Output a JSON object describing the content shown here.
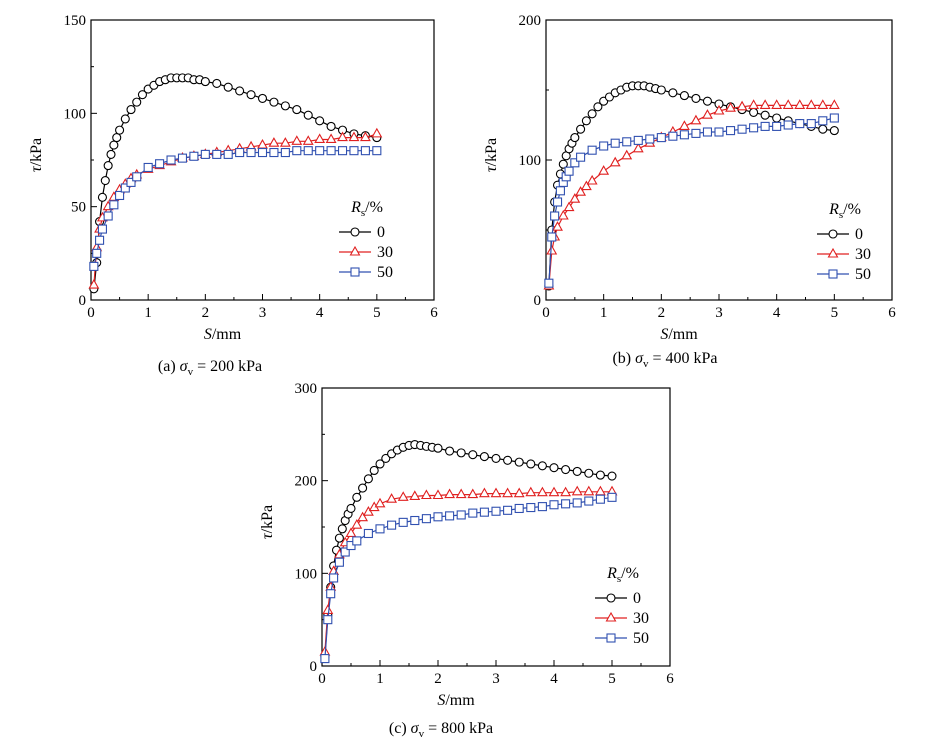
{
  "chart_data": [
    {
      "type": "scatter",
      "caption": {
        "prefix": "(a) ",
        "symbol": "σ",
        "sub": "v",
        "suffix": " = 200 kPa"
      },
      "xlabel": {
        "italic": "S",
        "unit": "/mm"
      },
      "ylabel": {
        "italic": "τ",
        "unit": "/kPa"
      },
      "xlim": [
        0,
        6
      ],
      "ylim": [
        0,
        150
      ],
      "xticks": [
        0,
        1,
        2,
        3,
        4,
        5,
        6
      ],
      "yticks": [
        0,
        50,
        100,
        150
      ],
      "legend": {
        "title_italic": "R",
        "title_sub": "s",
        "title_unit": "/%",
        "placement": "right"
      },
      "series": [
        {
          "name": "0",
          "marker": "circle",
          "color": "#000000",
          "x": [
            0.05,
            0.1,
            0.15,
            0.2,
            0.25,
            0.3,
            0.35,
            0.4,
            0.45,
            0.5,
            0.6,
            0.7,
            0.8,
            0.9,
            1.0,
            1.1,
            1.2,
            1.3,
            1.4,
            1.5,
            1.6,
            1.7,
            1.8,
            1.9,
            2.0,
            2.2,
            2.4,
            2.6,
            2.8,
            3.0,
            3.2,
            3.4,
            3.6,
            3.8,
            4.0,
            4.2,
            4.4,
            4.6,
            4.8,
            5.0
          ],
          "y": [
            6,
            20,
            42,
            55,
            64,
            72,
            78,
            83,
            87,
            91,
            97,
            102,
            106,
            110,
            113,
            115,
            117,
            118,
            119,
            119,
            119,
            119,
            118,
            118,
            117,
            116,
            114,
            112,
            110,
            108,
            106,
            104,
            102,
            99,
            96,
            93,
            91,
            89,
            88,
            87
          ]
        },
        {
          "name": "30",
          "marker": "triangle",
          "color": "#e02020",
          "x": [
            0.05,
            0.1,
            0.15,
            0.2,
            0.3,
            0.4,
            0.5,
            0.6,
            0.7,
            0.8,
            1.0,
            1.2,
            1.4,
            1.6,
            1.8,
            2.0,
            2.2,
            2.4,
            2.6,
            2.8,
            3.0,
            3.2,
            3.4,
            3.6,
            3.8,
            4.0,
            4.2,
            4.4,
            4.6,
            4.8,
            5.0
          ],
          "y": [
            8,
            28,
            38,
            44,
            50,
            55,
            59,
            62,
            65,
            67,
            70,
            72,
            74,
            76,
            77,
            78,
            79,
            80,
            81,
            82,
            83,
            84,
            84,
            85,
            85,
            86,
            86,
            87,
            87,
            87,
            89
          ]
        },
        {
          "name": "50",
          "marker": "square",
          "color": "#3050b0",
          "x": [
            0.05,
            0.1,
            0.15,
            0.2,
            0.3,
            0.4,
            0.5,
            0.6,
            0.7,
            0.8,
            1.0,
            1.2,
            1.4,
            1.6,
            1.8,
            2.0,
            2.2,
            2.4,
            2.6,
            2.8,
            3.0,
            3.2,
            3.4,
            3.6,
            3.8,
            4.0,
            4.2,
            4.4,
            4.6,
            4.8,
            5.0
          ],
          "y": [
            18,
            25,
            32,
            38,
            45,
            51,
            56,
            60,
            63,
            66,
            71,
            73,
            75,
            76,
            77,
            78,
            78,
            78,
            79,
            79,
            79,
            79,
            79,
            80,
            80,
            80,
            80,
            80,
            80,
            80,
            80
          ]
        }
      ]
    },
    {
      "type": "scatter",
      "caption": {
        "prefix": "(b) ",
        "symbol": "σ",
        "sub": "v",
        "suffix": " = 400 kPa"
      },
      "xlabel": {
        "italic": "S",
        "unit": "/mm"
      },
      "ylabel": {
        "italic": "τ",
        "unit": "/kPa"
      },
      "xlim": [
        0,
        6
      ],
      "ylim": [
        0,
        200
      ],
      "xticks": [
        0,
        1,
        2,
        3,
        4,
        5,
        6
      ],
      "yticks": [
        0,
        100,
        200
      ],
      "legend": {
        "title_italic": "R",
        "title_sub": "s",
        "title_unit": "/%",
        "placement": "right"
      },
      "series": [
        {
          "name": "0",
          "marker": "circle",
          "color": "#000000",
          "x": [
            0.05,
            0.1,
            0.15,
            0.2,
            0.25,
            0.3,
            0.35,
            0.4,
            0.45,
            0.5,
            0.6,
            0.7,
            0.8,
            0.9,
            1.0,
            1.1,
            1.2,
            1.3,
            1.4,
            1.5,
            1.6,
            1.7,
            1.8,
            1.9,
            2.0,
            2.2,
            2.4,
            2.6,
            2.8,
            3.0,
            3.2,
            3.4,
            3.6,
            3.8,
            4.0,
            4.2,
            4.4,
            4.6,
            4.8,
            5.0
          ],
          "y": [
            10,
            50,
            70,
            82,
            90,
            97,
            103,
            108,
            112,
            116,
            122,
            128,
            133,
            138,
            142,
            145,
            148,
            150,
            152,
            153,
            153,
            153,
            152,
            151,
            150,
            148,
            146,
            144,
            142,
            140,
            138,
            136,
            134,
            132,
            130,
            128,
            126,
            124,
            122,
            121
          ]
        },
        {
          "name": "30",
          "marker": "triangle",
          "color": "#e02020",
          "x": [
            0.05,
            0.1,
            0.15,
            0.2,
            0.3,
            0.4,
            0.5,
            0.6,
            0.7,
            0.8,
            1.0,
            1.2,
            1.4,
            1.6,
            1.8,
            2.0,
            2.2,
            2.4,
            2.6,
            2.8,
            3.0,
            3.2,
            3.4,
            3.6,
            3.8,
            4.0,
            4.2,
            4.4,
            4.6,
            4.8,
            5.0
          ],
          "y": [
            10,
            35,
            45,
            52,
            60,
            66,
            72,
            77,
            81,
            85,
            92,
            98,
            103,
            108,
            112,
            116,
            120,
            124,
            128,
            132,
            135,
            137,
            138,
            139,
            139,
            139,
            139,
            139,
            139,
            139,
            139
          ]
        },
        {
          "name": "50",
          "marker": "square",
          "color": "#3050b0",
          "x": [
            0.05,
            0.1,
            0.15,
            0.2,
            0.25,
            0.3,
            0.35,
            0.4,
            0.5,
            0.6,
            0.8,
            1.0,
            1.2,
            1.4,
            1.6,
            1.8,
            2.0,
            2.2,
            2.4,
            2.6,
            2.8,
            3.0,
            3.2,
            3.4,
            3.6,
            3.8,
            4.0,
            4.2,
            4.4,
            4.6,
            4.8,
            5.0
          ],
          "y": [
            12,
            45,
            60,
            70,
            78,
            84,
            88,
            92,
            98,
            102,
            107,
            110,
            112,
            113,
            114,
            115,
            116,
            117,
            118,
            119,
            120,
            120,
            121,
            122,
            123,
            124,
            124,
            125,
            126,
            126,
            128,
            130
          ]
        }
      ]
    },
    {
      "type": "scatter",
      "caption": {
        "prefix": "(c) ",
        "symbol": "σ",
        "sub": "v",
        "suffix": " = 800 kPa"
      },
      "xlabel": {
        "italic": "S",
        "unit": "/mm"
      },
      "ylabel": {
        "italic": "τ",
        "unit": "/kPa"
      },
      "xlim": [
        0,
        6
      ],
      "ylim": [
        0,
        300
      ],
      "xticks": [
        0,
        1,
        2,
        3,
        4,
        5,
        6
      ],
      "yticks": [
        0,
        100,
        200,
        300
      ],
      "legend": {
        "title_italic": "R",
        "title_sub": "s",
        "title_unit": "/%",
        "placement": "right"
      },
      "series": [
        {
          "name": "0",
          "marker": "circle",
          "color": "#000000",
          "x": [
            0.05,
            0.1,
            0.15,
            0.2,
            0.25,
            0.3,
            0.35,
            0.4,
            0.45,
            0.5,
            0.6,
            0.7,
            0.8,
            0.9,
            1.0,
            1.1,
            1.2,
            1.3,
            1.4,
            1.5,
            1.6,
            1.7,
            1.8,
            1.9,
            2.0,
            2.2,
            2.4,
            2.6,
            2.8,
            3.0,
            3.2,
            3.4,
            3.6,
            3.8,
            4.0,
            4.2,
            4.4,
            4.6,
            4.8,
            5.0
          ],
          "y": [
            10,
            55,
            85,
            108,
            125,
            138,
            148,
            157,
            164,
            170,
            182,
            192,
            202,
            211,
            218,
            224,
            229,
            233,
            236,
            238,
            239,
            238,
            237,
            236,
            235,
            232,
            230,
            228,
            226,
            224,
            222,
            220,
            218,
            216,
            214,
            212,
            210,
            208,
            206,
            205
          ]
        },
        {
          "name": "30",
          "marker": "triangle",
          "color": "#e02020",
          "x": [
            0.05,
            0.1,
            0.15,
            0.2,
            0.3,
            0.4,
            0.5,
            0.6,
            0.7,
            0.8,
            0.9,
            1.0,
            1.2,
            1.4,
            1.6,
            1.8,
            2.0,
            2.2,
            2.4,
            2.6,
            2.8,
            3.0,
            3.2,
            3.4,
            3.6,
            3.8,
            4.0,
            4.2,
            4.4,
            4.6,
            4.8,
            5.0
          ],
          "y": [
            15,
            60,
            85,
            102,
            120,
            133,
            143,
            152,
            160,
            166,
            171,
            175,
            180,
            182,
            183,
            184,
            184,
            185,
            185,
            185,
            186,
            186,
            186,
            186,
            187,
            187,
            187,
            187,
            188,
            188,
            188,
            188
          ]
        },
        {
          "name": "50",
          "marker": "square",
          "color": "#3050b0",
          "x": [
            0.05,
            0.1,
            0.15,
            0.2,
            0.3,
            0.4,
            0.5,
            0.6,
            0.8,
            1.0,
            1.2,
            1.4,
            1.6,
            1.8,
            2.0,
            2.2,
            2.4,
            2.6,
            2.8,
            3.0,
            3.2,
            3.4,
            3.6,
            3.8,
            4.0,
            4.2,
            4.4,
            4.6,
            4.8,
            5.0
          ],
          "y": [
            8,
            50,
            78,
            95,
            112,
            123,
            130,
            135,
            143,
            148,
            152,
            155,
            157,
            159,
            161,
            162,
            163,
            165,
            166,
            167,
            168,
            170,
            171,
            172,
            174,
            175,
            176,
            178,
            180,
            182
          ]
        }
      ]
    }
  ]
}
